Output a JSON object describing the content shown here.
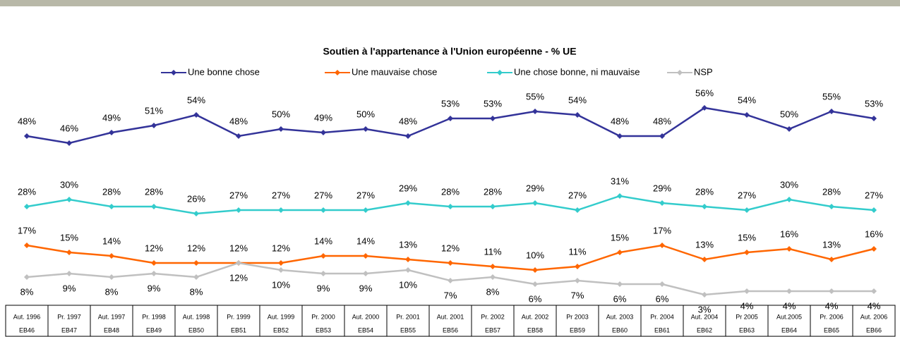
{
  "chart_data": {
    "type": "line",
    "title": "Soutien à l'appartenance à l'Union européenne - % UE",
    "categories": [
      "Aut. 1996",
      "Pr. 1997",
      "Aut. 1997",
      "Pr. 1998",
      "Aut. 1998",
      "Pr. 1999",
      "Aut. 1999",
      "Pr. 2000",
      "Aut. 2000",
      "Pr. 2001",
      "Aut. 2001",
      "Pr. 2002",
      "Aut. 2002",
      "Pr 2003",
      "Aut. 2003",
      "Pr. 2004",
      "Aut. 2004",
      "Pr 2005",
      "Aut.2005",
      "Pr. 2006",
      "Aut. 2006"
    ],
    "category_sublabels": [
      "EB46",
      "EB47",
      "EB48",
      "EB49",
      "EB50",
      "EB51",
      "EB52",
      "EB53",
      "EB54",
      "EB55",
      "EB56",
      "EB57",
      "EB58",
      "EB59",
      "EB60",
      "EB61",
      "EB62",
      "EB63",
      "EB64",
      "EB65",
      "EB66"
    ],
    "series": [
      {
        "name": "Une bonne chose",
        "color": "#333399",
        "values": [
          48,
          46,
          49,
          51,
          54,
          48,
          50,
          49,
          50,
          48,
          53,
          53,
          55,
          54,
          48,
          48,
          56,
          54,
          50,
          55,
          53
        ],
        "value_labels": [
          "48%",
          "46%",
          "49%",
          "51%",
          "54%",
          "48%",
          "50%",
          "49%",
          "50%",
          "48%",
          "53%",
          "53%",
          "55%",
          "54%",
          "48%",
          "48%",
          "56%",
          "54%",
          "50%",
          "55%",
          "53%"
        ]
      },
      {
        "name": "Une mauvaise chose",
        "color": "#ff6600",
        "values": [
          17,
          15,
          14,
          12,
          12,
          12,
          12,
          14,
          14,
          13,
          12,
          11,
          10,
          11,
          15,
          17,
          13,
          15,
          16,
          13,
          16
        ],
        "value_labels": [
          "17%",
          "15%",
          "14%",
          "12%",
          "12%",
          "12%",
          "12%",
          "14%",
          "14%",
          "13%",
          "12%",
          "11%",
          "10%",
          "11%",
          "15%",
          "17%",
          "13%",
          "15%",
          "16%",
          "13%",
          "16%"
        ]
      },
      {
        "name": "Une chose bonne, ni mauvaise",
        "color": "#33cccc",
        "values": [
          28,
          30,
          28,
          28,
          26,
          27,
          27,
          27,
          27,
          29,
          28,
          28,
          29,
          27,
          31,
          29,
          28,
          27,
          30,
          28,
          27
        ],
        "value_labels": [
          "28%",
          "30%",
          "28%",
          "28%",
          "26%",
          "27%",
          "27%",
          "27%",
          "27%",
          "29%",
          "28%",
          "28%",
          "29%",
          "27%",
          "31%",
          "29%",
          "28%",
          "27%",
          "30%",
          "28%",
          "27%"
        ]
      },
      {
        "name": "NSP",
        "color": "#c0c0c0",
        "values": [
          8,
          9,
          8,
          9,
          8,
          12,
          10,
          9,
          9,
          10,
          7,
          8,
          6,
          7,
          6,
          6,
          3,
          4,
          4,
          4,
          4
        ],
        "value_labels": [
          "8%",
          "9%",
          "8%",
          "9%",
          "8%",
          "12%",
          "10%",
          "9%",
          "9%",
          "10%",
          "7%",
          "8%",
          "6%",
          "7%",
          "6%",
          "6%",
          "3%",
          "4%",
          "4%",
          "4%",
          "4%"
        ]
      }
    ]
  }
}
